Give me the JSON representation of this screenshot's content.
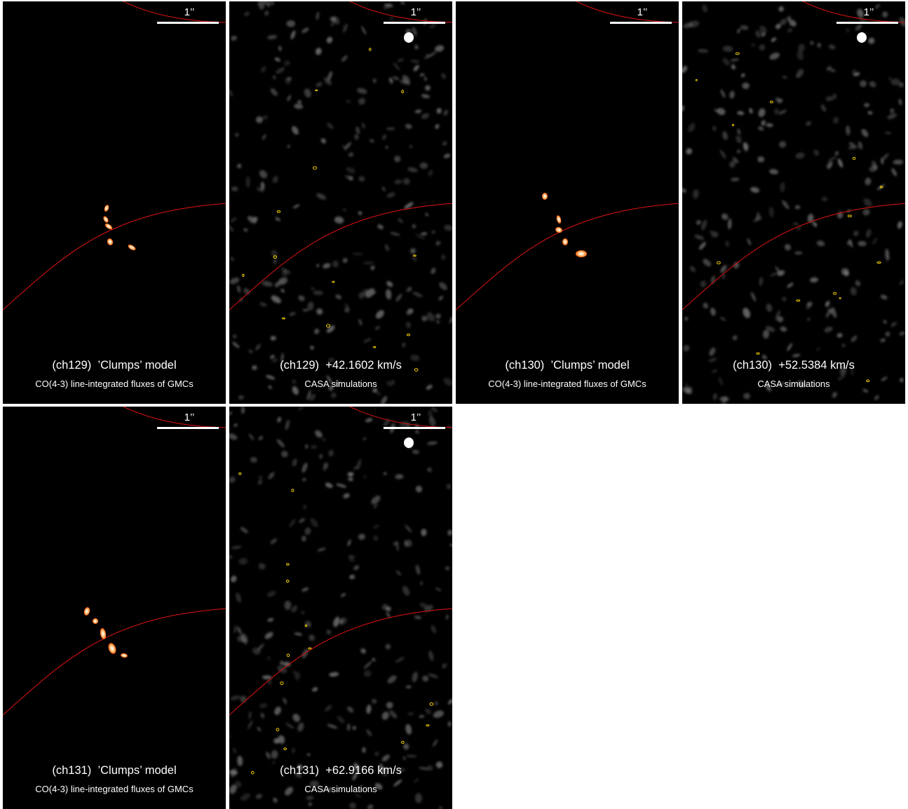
{
  "scale_bar_label": "1’’",
  "panels": [
    {
      "channel": "(ch129)",
      "title": "’Clumps’ model",
      "subtitle": "CO(4-3) line-integrated fluxes of GMCs",
      "type": "model"
    },
    {
      "channel": "(ch129)",
      "title": "+42.1602 km/s",
      "subtitle": "CASA simulations",
      "type": "sim"
    },
    {
      "channel": "(ch130)",
      "title": "’Clumps’ model",
      "subtitle": "CO(4-3) line-integrated fluxes of GMCs",
      "type": "model"
    },
    {
      "channel": "(ch130)",
      "title": "+52.5384 km/s",
      "subtitle": "CASA simulations",
      "type": "sim"
    },
    {
      "channel": "(ch131)",
      "title": "’Clumps’ model",
      "subtitle": "CO(4-3) line-integrated fluxes of GMCs",
      "type": "model"
    },
    {
      "channel": "(ch131)",
      "title": "+62.9166 km/s",
      "subtitle": "CASA simulations",
      "type": "sim"
    }
  ],
  "colors": {
    "panel_background": "#000000",
    "critical_curve": "#cc1111",
    "contour": "#f5d000",
    "emission_hot": "#ff5a00",
    "noise": "#7a7a7a"
  }
}
